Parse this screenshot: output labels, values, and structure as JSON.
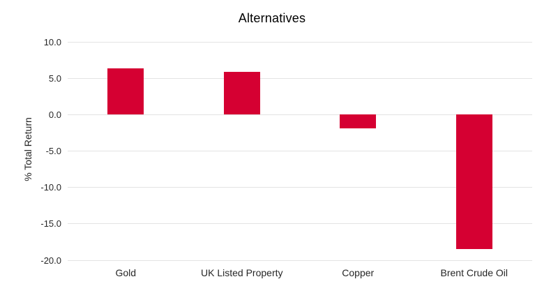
{
  "chart_data": {
    "type": "bar",
    "title": "Alternatives",
    "xlabel": "",
    "ylabel": "% Total Return",
    "categories": [
      "Gold",
      "UK Listed Property",
      "Copper",
      "Brent Crude Oil"
    ],
    "values": [
      6.4,
      5.9,
      -1.9,
      -18.5
    ],
    "ylim": [
      -20,
      10
    ],
    "yticks": [
      {
        "value": 10,
        "label": "10.0"
      },
      {
        "value": 5,
        "label": "5.0"
      },
      {
        "value": 0,
        "label": "0.0"
      },
      {
        "value": -5,
        "label": "-5.0"
      },
      {
        "value": -10,
        "label": "-10.0"
      },
      {
        "value": -15,
        "label": "-15.0"
      },
      {
        "value": -20,
        "label": "-20.0"
      }
    ],
    "grid": true,
    "legend": "none",
    "bar_color": "#d50032",
    "gridline_color": "#e3e3e3",
    "text_color": "#262626",
    "title_color": "#000000"
  }
}
